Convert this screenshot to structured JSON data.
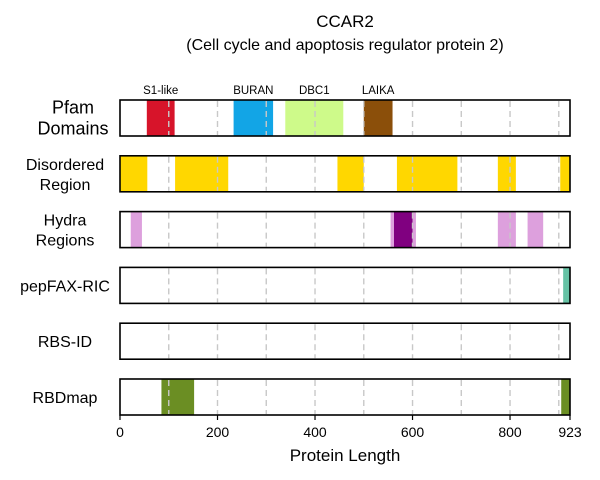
{
  "chart_data": {
    "type": "bar",
    "subtype": "protein-domain-tracks",
    "title": "CCAR2",
    "subtitle": "(Cell cycle and apoptosis regulator protein 2)",
    "xlabel": "Protein Length",
    "xlim": [
      0,
      923
    ],
    "xticks": [
      0,
      200,
      400,
      600,
      800,
      923
    ],
    "gridlines": [
      100,
      200,
      300,
      400,
      500,
      600,
      700,
      800,
      900
    ],
    "tracks": [
      {
        "label_lines": [
          "Pfam",
          "Domains"
        ],
        "segments": [
          {
            "name": "S1-like",
            "start": 55,
            "end": 112,
            "color": "#d7142a"
          },
          {
            "name": "BURAN",
            "start": 233,
            "end": 314,
            "color": "#12a5e6"
          },
          {
            "name": "DBC1",
            "start": 339,
            "end": 458,
            "color": "#cefa8a"
          },
          {
            "name": "LAIKA",
            "start": 500,
            "end": 559,
            "color": "#8b4f0a"
          }
        ]
      },
      {
        "label_lines": [
          "Disordered",
          "Region"
        ],
        "segments": [
          {
            "start": 0,
            "end": 56,
            "color": "#ffd700"
          },
          {
            "start": 113,
            "end": 222,
            "color": "#ffd700"
          },
          {
            "start": 446,
            "end": 500,
            "color": "#ffd700"
          },
          {
            "start": 568,
            "end": 692,
            "color": "#ffd700"
          },
          {
            "start": 775,
            "end": 812,
            "color": "#ffd700"
          },
          {
            "start": 903,
            "end": 923,
            "color": "#ffd700"
          }
        ]
      },
      {
        "label_lines": [
          "Hydra",
          "Regions"
        ],
        "segments": [
          {
            "start": 22,
            "end": 45,
            "color": "#dda0dd"
          },
          {
            "start": 555,
            "end": 562,
            "color": "#dda0dd"
          },
          {
            "start": 562,
            "end": 600,
            "color": "#800080"
          },
          {
            "start": 600,
            "end": 607,
            "color": "#dda0dd"
          },
          {
            "start": 775,
            "end": 812,
            "color": "#dda0dd"
          },
          {
            "start": 836,
            "end": 868,
            "color": "#dda0dd"
          }
        ]
      },
      {
        "label_lines": [
          "pepFAX-RIC"
        ],
        "segments": [
          {
            "start": 909,
            "end": 923,
            "color": "#66c2a5"
          }
        ]
      },
      {
        "label_lines": [
          "RBS-ID"
        ],
        "segments": []
      },
      {
        "label_lines": [
          "RBDmap"
        ],
        "segments": [
          {
            "start": 85,
            "end": 152,
            "color": "#6b8e23"
          },
          {
            "start": 905,
            "end": 923,
            "color": "#6b8e23"
          }
        ]
      }
    ]
  }
}
